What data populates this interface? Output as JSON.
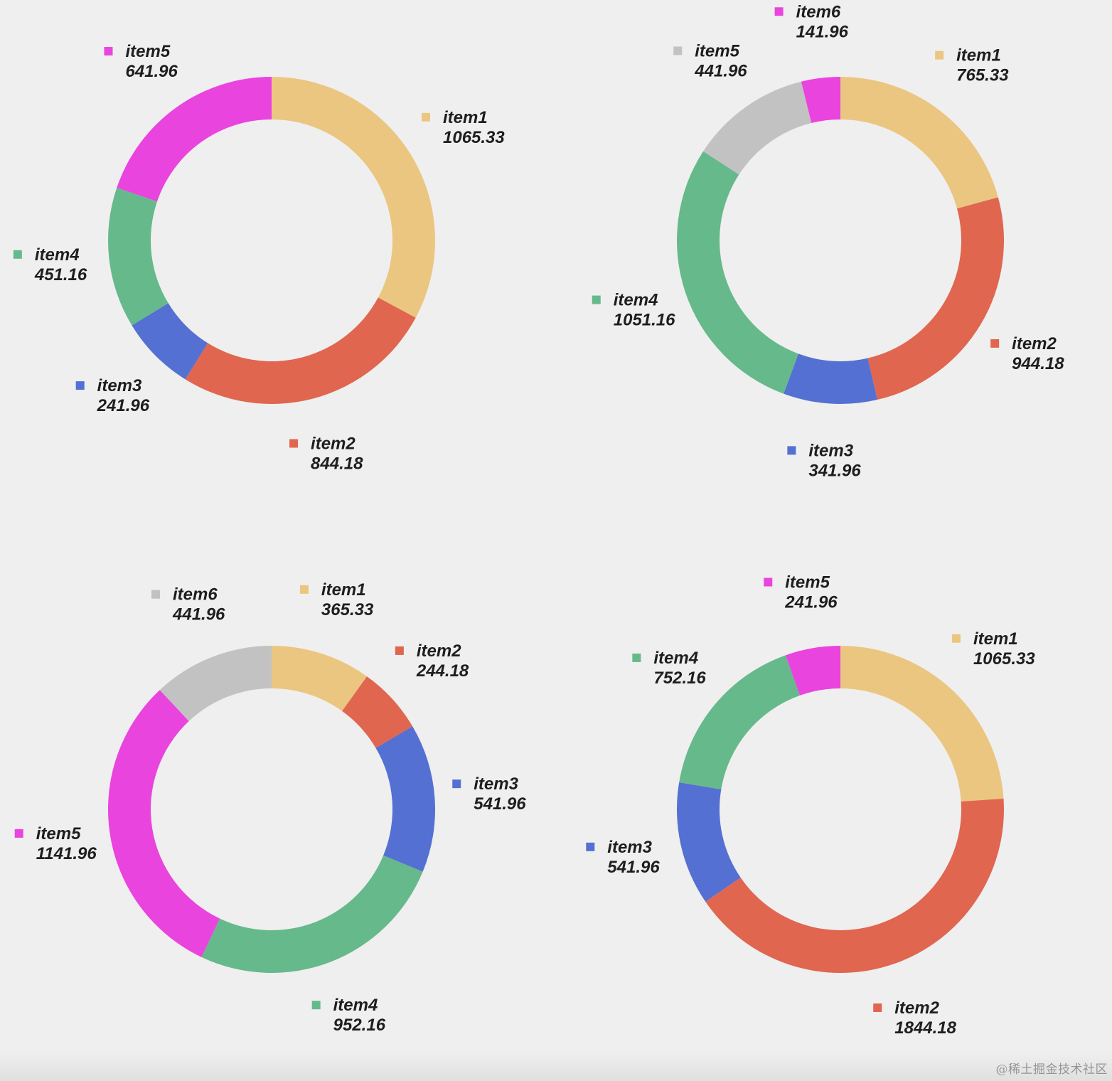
{
  "chart_data": [
    {
      "type": "pie",
      "style": "donut",
      "labels": [
        "item1",
        "item2",
        "item3",
        "item4",
        "item5"
      ],
      "values": [
        1065.33,
        844.18,
        241.96,
        451.16,
        641.96
      ],
      "colors": [
        "#ebc681",
        "#e0664f",
        "#5470d2",
        "#66b98b",
        "#e944de"
      ]
    },
    {
      "type": "pie",
      "style": "donut",
      "labels": [
        "item1",
        "item2",
        "item3",
        "item4",
        "item5",
        "item6"
      ],
      "values": [
        765.33,
        944.18,
        341.96,
        1051.16,
        441.96,
        141.96
      ],
      "colors": [
        "#ebc681",
        "#e0664f",
        "#5470d2",
        "#66b98b",
        "#c2c2c2",
        "#e944de"
      ]
    },
    {
      "type": "pie",
      "style": "donut",
      "labels": [
        "item1",
        "item2",
        "item3",
        "item4",
        "item5",
        "item6"
      ],
      "values": [
        365.33,
        244.18,
        541.96,
        952.16,
        1141.96,
        441.96
      ],
      "colors": [
        "#ebc681",
        "#e0664f",
        "#5470d2",
        "#66b98b",
        "#e944de",
        "#c2c2c2"
      ]
    },
    {
      "type": "pie",
      "style": "donut",
      "labels": [
        "item1",
        "item2",
        "item3",
        "item4",
        "item5"
      ],
      "values": [
        1065.33,
        1844.18,
        541.96,
        752.16,
        241.96
      ],
      "colors": [
        "#ebc681",
        "#e0664f",
        "#5470d2",
        "#66b98b",
        "#e944de"
      ]
    }
  ],
  "watermark": "@稀土掘金技术社区"
}
